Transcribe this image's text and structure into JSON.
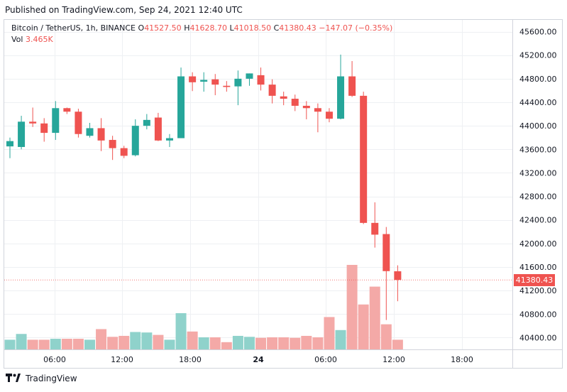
{
  "published": "Published on TradingView.com, Sep 24, 2021 12:40 UTC",
  "legend": {
    "symbol": "Bitcoin / TetherUS, 1h, BINANCE",
    "open_label": "O",
    "open": "41527.50",
    "high_label": "H",
    "high": "41628.70",
    "low_label": "L",
    "low": "41018.50",
    "close_label": "C",
    "close": "41380.43",
    "change": "−147.07 (−0.35%)",
    "vol_label": "Vol",
    "vol": "3.465K"
  },
  "last_price": "41380.43",
  "footer": {
    "brand": "TradingView"
  },
  "colors": {
    "up": "#26a69a",
    "down": "#ef5350",
    "up_volume": "#8fd2cb",
    "down_volume": "#f4a9a7",
    "grid": "#eef0f3"
  },
  "chart_data": {
    "type": "candlestick",
    "ylim": [
      40200,
      45800
    ],
    "y_ticks": [
      "45600.00",
      "45200.00",
      "44800.00",
      "44400.00",
      "44000.00",
      "43600.00",
      "43200.00",
      "42800.00",
      "42400.00",
      "42000.00",
      "41600.00",
      "41200.00",
      "40800.00",
      "40400.00"
    ],
    "x_ticks": [
      {
        "label": "06:00",
        "index": 4
      },
      {
        "label": "12:00",
        "index": 10
      },
      {
        "label": "18:00",
        "index": 16
      },
      {
        "label": "24",
        "index": 22
      },
      {
        "label": "06:00",
        "index": 28
      },
      {
        "label": "12:00",
        "index": 34
      },
      {
        "label": "18:00",
        "index": 40
      }
    ],
    "candles": [
      {
        "o": 43650,
        "h": 43800,
        "l": 43450,
        "c": 43740
      },
      {
        "o": 43640,
        "h": 44170,
        "l": 43600,
        "c": 44070
      },
      {
        "o": 44070,
        "h": 44310,
        "l": 43980,
        "c": 44040
      },
      {
        "o": 44040,
        "h": 44130,
        "l": 43730,
        "c": 43880
      },
      {
        "o": 43880,
        "h": 44420,
        "l": 43760,
        "c": 44300
      },
      {
        "o": 44300,
        "h": 44310,
        "l": 44200,
        "c": 44240
      },
      {
        "o": 44240,
        "h": 44290,
        "l": 43800,
        "c": 43860
      },
      {
        "o": 43830,
        "h": 44050,
        "l": 43800,
        "c": 43960
      },
      {
        "o": 43960,
        "h": 44130,
        "l": 43570,
        "c": 43750
      },
      {
        "o": 43760,
        "h": 43830,
        "l": 43420,
        "c": 43620
      },
      {
        "o": 43620,
        "h": 43660,
        "l": 43450,
        "c": 43490
      },
      {
        "o": 43500,
        "h": 44110,
        "l": 43480,
        "c": 44000
      },
      {
        "o": 44000,
        "h": 44200,
        "l": 43940,
        "c": 44100
      },
      {
        "o": 44140,
        "h": 44220,
        "l": 43740,
        "c": 43750
      },
      {
        "o": 43750,
        "h": 43860,
        "l": 43640,
        "c": 43790
      },
      {
        "o": 43790,
        "h": 44990,
        "l": 43790,
        "c": 44840
      },
      {
        "o": 44840,
        "h": 44910,
        "l": 44590,
        "c": 44740
      },
      {
        "o": 44750,
        "h": 44910,
        "l": 44580,
        "c": 44780
      },
      {
        "o": 44790,
        "h": 44880,
        "l": 44520,
        "c": 44700
      },
      {
        "o": 44680,
        "h": 44760,
        "l": 44580,
        "c": 44660
      },
      {
        "o": 44670,
        "h": 44940,
        "l": 44350,
        "c": 44800
      },
      {
        "o": 44800,
        "h": 44890,
        "l": 44680,
        "c": 44890
      },
      {
        "o": 44860,
        "h": 44990,
        "l": 44600,
        "c": 44700
      },
      {
        "o": 44700,
        "h": 44790,
        "l": 44380,
        "c": 44510
      },
      {
        "o": 44500,
        "h": 44580,
        "l": 44350,
        "c": 44460
      },
      {
        "o": 44460,
        "h": 44530,
        "l": 44250,
        "c": 44340
      },
      {
        "o": 44340,
        "h": 44420,
        "l": 44110,
        "c": 44300
      },
      {
        "o": 44300,
        "h": 44380,
        "l": 43890,
        "c": 44240
      },
      {
        "o": 44240,
        "h": 44300,
        "l": 44060,
        "c": 44120
      },
      {
        "o": 44120,
        "h": 45210,
        "l": 44110,
        "c": 44840
      },
      {
        "o": 44840,
        "h": 45100,
        "l": 44490,
        "c": 44510
      },
      {
        "o": 44510,
        "h": 44580,
        "l": 42330,
        "c": 42350
      },
      {
        "o": 42350,
        "h": 42700,
        "l": 41930,
        "c": 42150
      },
      {
        "o": 42160,
        "h": 42280,
        "l": 40700,
        "c": 41530
      },
      {
        "o": 41527.5,
        "h": 41628.7,
        "l": 41018.5,
        "c": 41380.43
      }
    ],
    "volume": [
      0.2,
      0.32,
      0.2,
      0.2,
      0.22,
      0.22,
      0.22,
      0.2,
      0.42,
      0.26,
      0.28,
      0.36,
      0.35,
      0.3,
      0.2,
      0.75,
      0.37,
      0.25,
      0.25,
      0.15,
      0.28,
      0.26,
      0.24,
      0.25,
      0.25,
      0.24,
      0.28,
      0.25,
      0.67,
      0.4,
      1.75,
      0.93,
      1.3,
      0.52,
      0.2
    ]
  }
}
